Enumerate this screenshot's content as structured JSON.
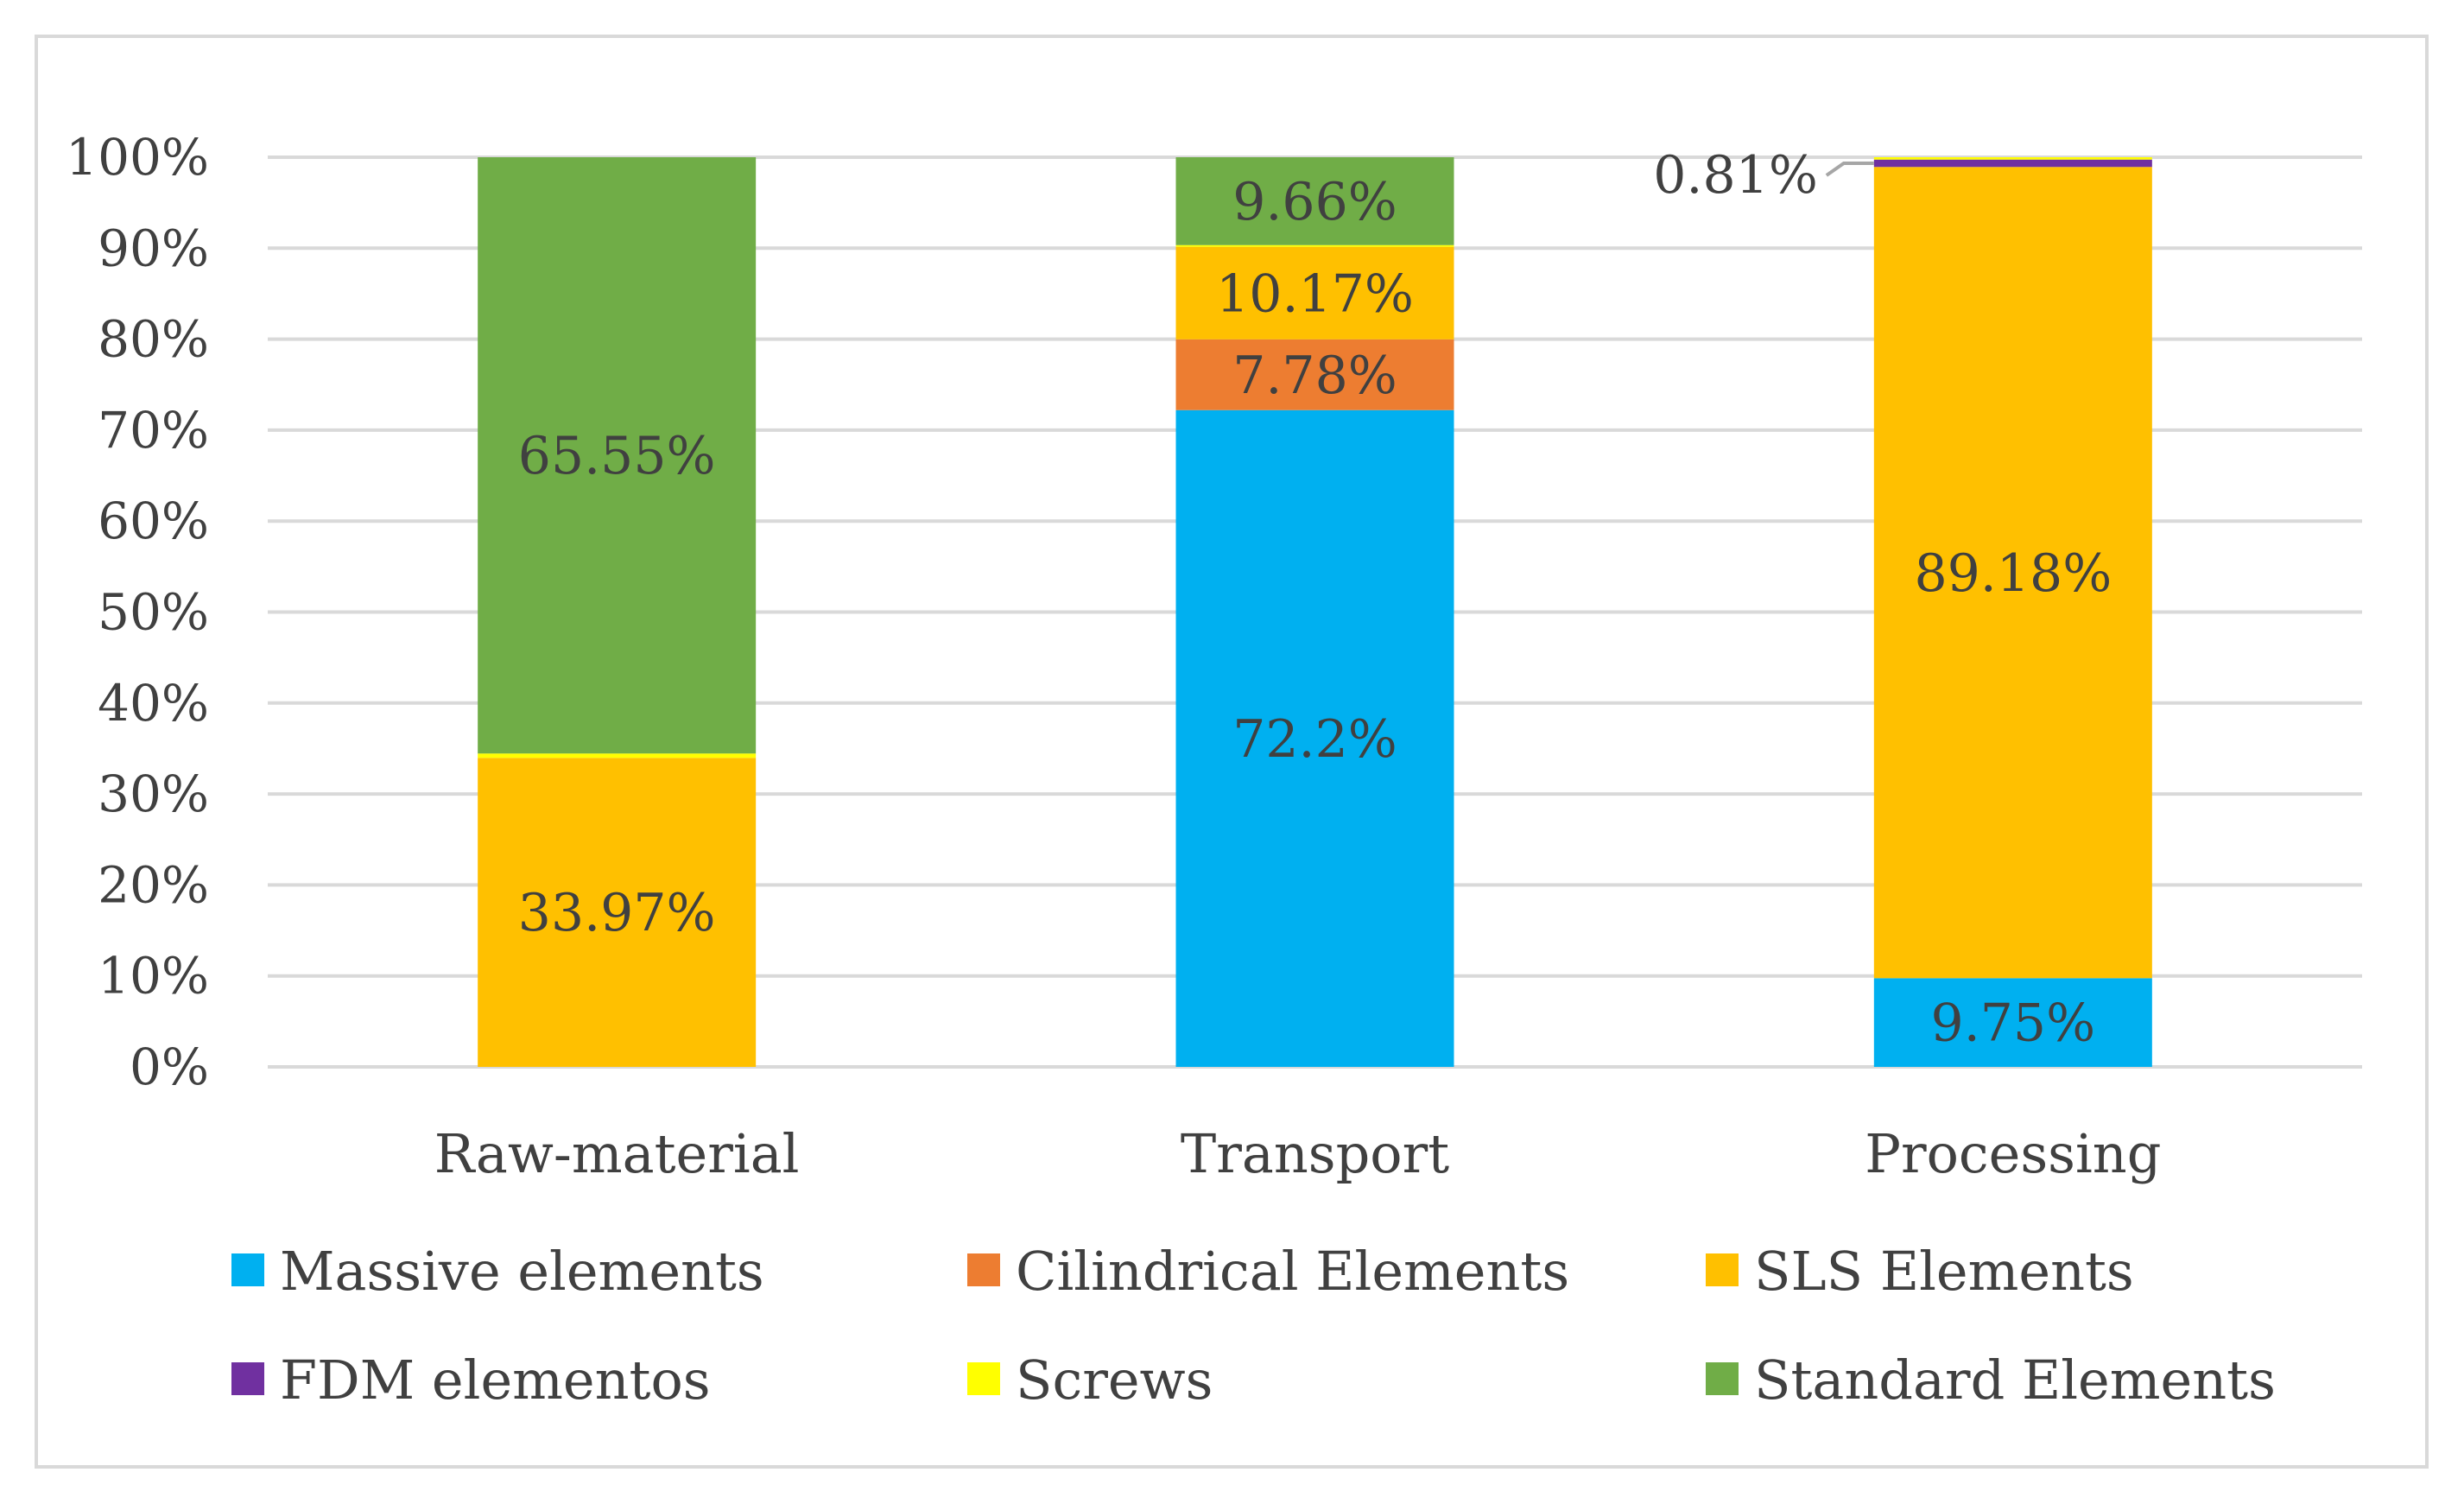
{
  "chart_data": {
    "type": "stacked-bar-100",
    "title": "",
    "xlabel": "",
    "ylabel": "",
    "ylim": [
      0,
      100
    ],
    "yticks": [
      "0%",
      "10%",
      "20%",
      "30%",
      "40%",
      "50%",
      "60%",
      "70%",
      "80%",
      "90%",
      "100%"
    ],
    "categories": [
      "Raw-material",
      "Transport",
      "Processing"
    ],
    "series": [
      {
        "name": "Massive elements",
        "color": "#00B0F0",
        "values": [
          0,
          72.2,
          9.75
        ],
        "labels": [
          "",
          "72.2%",
          "9.75%"
        ]
      },
      {
        "name": "Cilindrical Elements",
        "color": "#ED7D31",
        "values": [
          0,
          7.78,
          0
        ],
        "labels": [
          "",
          "7.78%",
          ""
        ]
      },
      {
        "name": "SLS Elements",
        "color": "#FFC000",
        "values": [
          33.97,
          10.17,
          89.18
        ],
        "labels": [
          "33.97%",
          "10.17%",
          "89.18%"
        ]
      },
      {
        "name": "FDM elementos",
        "color": "#7030A0",
        "values": [
          0,
          0,
          0.81
        ],
        "labels": [
          "",
          "",
          "0.81%"
        ]
      },
      {
        "name": "Screws",
        "color": "#FFFF00",
        "values": [
          0.48,
          0.19,
          0.26
        ],
        "labels": [
          "",
          "",
          ""
        ]
      },
      {
        "name": "Standard Elements",
        "color": "#70AD47",
        "values": [
          65.55,
          9.66,
          0
        ],
        "labels": [
          "65.55%",
          "9.66%",
          ""
        ]
      }
    ],
    "legend_position": "bottom",
    "grid": true
  }
}
